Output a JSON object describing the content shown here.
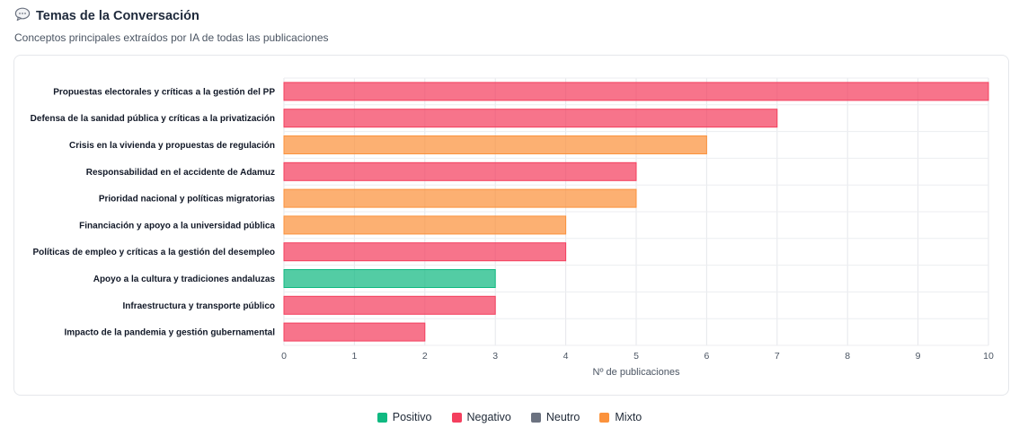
{
  "header": {
    "icon": "speech-bubble-icon",
    "title": "Temas de la Conversación",
    "subtitle": "Conceptos principales extraídos por IA de todas las publicaciones"
  },
  "colors": {
    "positivo": "#10b981",
    "negativo": "#f43f5e",
    "neutro": "#6b7280",
    "mixto": "#fb923c"
  },
  "legend": [
    {
      "key": "positivo",
      "label": "Positivo"
    },
    {
      "key": "negativo",
      "label": "Negativo"
    },
    {
      "key": "neutro",
      "label": "Neutro"
    },
    {
      "key": "mixto",
      "label": "Mixto"
    }
  ],
  "chart_data": {
    "type": "bar",
    "orientation": "horizontal",
    "title": "",
    "xlabel": "Nº de publicaciones",
    "ylabel": "",
    "xlim": [
      0,
      10
    ],
    "xticks": [
      0,
      1,
      2,
      3,
      4,
      5,
      6,
      7,
      8,
      9,
      10
    ],
    "grid": true,
    "legend_position": "bottom-center",
    "categories": [
      "Propuestas electorales y críticas a la gestión del PP",
      "Defensa de la sanidad pública y críticas a la privatización",
      "Crisis en la vivienda y propuestas de regulación",
      "Responsabilidad en el accidente de Adamuz",
      "Prioridad nacional y políticas migratorias",
      "Financiación y apoyo a la universidad pública",
      "Políticas de empleo y críticas a la gestión del desempleo",
      "Apoyo a la cultura y tradiciones andaluzas",
      "Infraestructura y transporte público",
      "Impacto de la pandemia y gestión gubernamental"
    ],
    "values": [
      10,
      7,
      6,
      5,
      5,
      4,
      4,
      3,
      3,
      2
    ],
    "sentiment": [
      "negativo",
      "negativo",
      "mixto",
      "negativo",
      "mixto",
      "mixto",
      "negativo",
      "positivo",
      "negativo",
      "negativo"
    ]
  }
}
